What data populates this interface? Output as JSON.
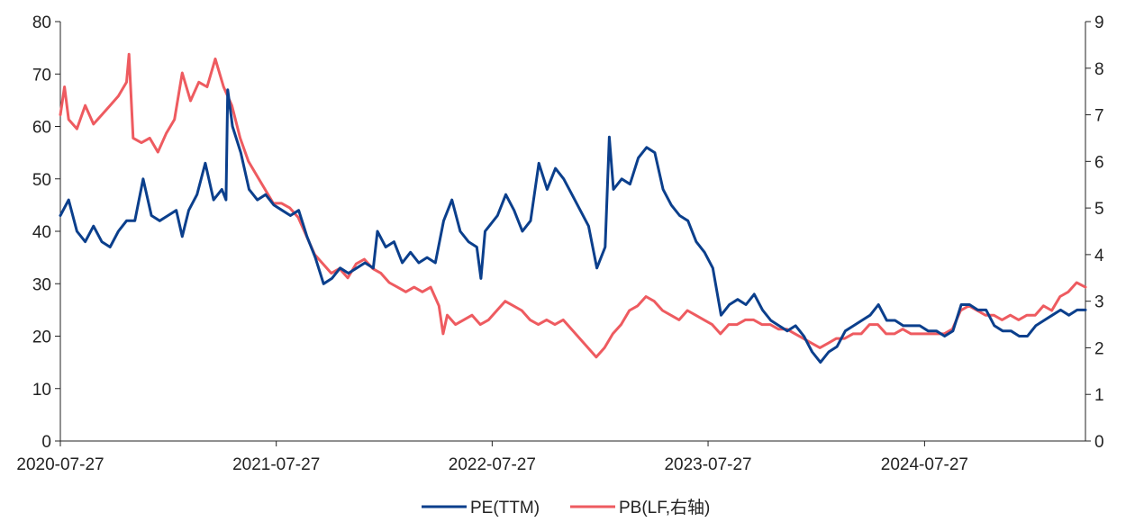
{
  "chart_data": {
    "type": "line",
    "title": "",
    "xlabel": "",
    "ylabel": "",
    "ylabel_right": "",
    "x_tick_labels": [
      "2020-07-27",
      "2021-07-27",
      "2022-07-27",
      "2023-07-27",
      "2024-07-27"
    ],
    "xlim": [
      "2020-07-27",
      "2025-04-25"
    ],
    "ylim_left": [
      0,
      80
    ],
    "ylim_right": [
      0,
      9
    ],
    "y_ticks_left": [
      0,
      10,
      20,
      30,
      40,
      50,
      60,
      70,
      80
    ],
    "y_ticks_right": [
      0,
      1,
      2,
      3,
      4,
      5,
      6,
      7,
      8,
      9
    ],
    "grid": false,
    "legend_position": "bottom",
    "colors": {
      "pe": "#0b3f8c",
      "pb": "#ee5b60",
      "axis": "#222222"
    },
    "series": [
      {
        "name": "PE(TTM)",
        "axis": "left",
        "points": [
          [
            "2020-07-27",
            43
          ],
          [
            "2020-08-10",
            46
          ],
          [
            "2020-08-24",
            40
          ],
          [
            "2020-09-07",
            38
          ],
          [
            "2020-09-21",
            41
          ],
          [
            "2020-10-05",
            38
          ],
          [
            "2020-10-19",
            37
          ],
          [
            "2020-11-02",
            40
          ],
          [
            "2020-11-16",
            42
          ],
          [
            "2020-11-30",
            42
          ],
          [
            "2020-12-14",
            50
          ],
          [
            "2020-12-28",
            43
          ],
          [
            "2021-01-11",
            42
          ],
          [
            "2021-01-25",
            43
          ],
          [
            "2021-02-08",
            44
          ],
          [
            "2021-02-18",
            39
          ],
          [
            "2021-03-01",
            44
          ],
          [
            "2021-03-15",
            47
          ],
          [
            "2021-03-29",
            53
          ],
          [
            "2021-04-12",
            46
          ],
          [
            "2021-04-26",
            48
          ],
          [
            "2021-05-03",
            46
          ],
          [
            "2021-05-06",
            67
          ],
          [
            "2021-05-14",
            60
          ],
          [
            "2021-05-28",
            55
          ],
          [
            "2021-06-11",
            48
          ],
          [
            "2021-06-25",
            46
          ],
          [
            "2021-07-09",
            47
          ],
          [
            "2021-07-23",
            45
          ],
          [
            "2021-08-06",
            44
          ],
          [
            "2021-08-20",
            43
          ],
          [
            "2021-09-03",
            44
          ],
          [
            "2021-09-17",
            39
          ],
          [
            "2021-10-01",
            35
          ],
          [
            "2021-10-15",
            30
          ],
          [
            "2021-10-29",
            31
          ],
          [
            "2021-11-12",
            33
          ],
          [
            "2021-11-26",
            32
          ],
          [
            "2021-12-10",
            33
          ],
          [
            "2021-12-24",
            34
          ],
          [
            "2022-01-07",
            33
          ],
          [
            "2022-01-14",
            40
          ],
          [
            "2022-01-28",
            37
          ],
          [
            "2022-02-11",
            38
          ],
          [
            "2022-02-25",
            34
          ],
          [
            "2022-03-11",
            36
          ],
          [
            "2022-03-25",
            34
          ],
          [
            "2022-04-08",
            35
          ],
          [
            "2022-04-22",
            34
          ],
          [
            "2022-05-06",
            42
          ],
          [
            "2022-05-20",
            46
          ],
          [
            "2022-06-03",
            40
          ],
          [
            "2022-06-17",
            38
          ],
          [
            "2022-07-01",
            37
          ],
          [
            "2022-07-08",
            31
          ],
          [
            "2022-07-15",
            40
          ],
          [
            "2022-07-22",
            41
          ],
          [
            "2022-08-05",
            43
          ],
          [
            "2022-08-19",
            47
          ],
          [
            "2022-09-02",
            44
          ],
          [
            "2022-09-16",
            40
          ],
          [
            "2022-09-30",
            42
          ],
          [
            "2022-10-14",
            53
          ],
          [
            "2022-10-28",
            48
          ],
          [
            "2022-11-11",
            52
          ],
          [
            "2022-11-25",
            50
          ],
          [
            "2022-12-09",
            47
          ],
          [
            "2022-12-23",
            44
          ],
          [
            "2023-01-06",
            41
          ],
          [
            "2023-01-20",
            33
          ],
          [
            "2023-02-03",
            37
          ],
          [
            "2023-02-10",
            58
          ],
          [
            "2023-02-17",
            48
          ],
          [
            "2023-03-03",
            50
          ],
          [
            "2023-03-17",
            49
          ],
          [
            "2023-03-31",
            54
          ],
          [
            "2023-04-14",
            56
          ],
          [
            "2023-04-28",
            55
          ],
          [
            "2023-05-12",
            48
          ],
          [
            "2023-05-26",
            45
          ],
          [
            "2023-06-09",
            43
          ],
          [
            "2023-06-23",
            42
          ],
          [
            "2023-07-07",
            38
          ],
          [
            "2023-07-21",
            36
          ],
          [
            "2023-08-04",
            33
          ],
          [
            "2023-08-18",
            24
          ],
          [
            "2023-09-01",
            26
          ],
          [
            "2023-09-15",
            27
          ],
          [
            "2023-09-29",
            26
          ],
          [
            "2023-10-13",
            28
          ],
          [
            "2023-10-27",
            25
          ],
          [
            "2023-11-10",
            23
          ],
          [
            "2023-11-24",
            22
          ],
          [
            "2023-12-08",
            21
          ],
          [
            "2023-12-22",
            22
          ],
          [
            "2024-01-05",
            20
          ],
          [
            "2024-01-19",
            17
          ],
          [
            "2024-02-02",
            15
          ],
          [
            "2024-02-16",
            17
          ],
          [
            "2024-03-01",
            18
          ],
          [
            "2024-03-15",
            21
          ],
          [
            "2024-03-29",
            22
          ],
          [
            "2024-04-12",
            23
          ],
          [
            "2024-04-26",
            24
          ],
          [
            "2024-05-10",
            26
          ],
          [
            "2024-05-24",
            23
          ],
          [
            "2024-06-07",
            23
          ],
          [
            "2024-06-21",
            22
          ],
          [
            "2024-07-05",
            22
          ],
          [
            "2024-07-19",
            22
          ],
          [
            "2024-08-02",
            21
          ],
          [
            "2024-08-16",
            21
          ],
          [
            "2024-08-30",
            20
          ],
          [
            "2024-09-13",
            21
          ],
          [
            "2024-09-27",
            26
          ],
          [
            "2024-10-11",
            26
          ],
          [
            "2024-10-25",
            25
          ],
          [
            "2024-11-08",
            25
          ],
          [
            "2024-11-22",
            22
          ],
          [
            "2024-12-06",
            21
          ],
          [
            "2024-12-20",
            21
          ],
          [
            "2025-01-03",
            20
          ],
          [
            "2025-01-17",
            20
          ],
          [
            "2025-01-31",
            22
          ],
          [
            "2025-02-14",
            23
          ],
          [
            "2025-02-28",
            24
          ],
          [
            "2025-03-14",
            25
          ],
          [
            "2025-03-28",
            24
          ],
          [
            "2025-04-11",
            25
          ],
          [
            "2025-04-25",
            25
          ]
        ]
      },
      {
        "name": "PB(LF,右轴)",
        "axis": "right",
        "points": [
          [
            "2020-07-27",
            7.0
          ],
          [
            "2020-08-03",
            7.6
          ],
          [
            "2020-08-10",
            6.9
          ],
          [
            "2020-08-24",
            6.7
          ],
          [
            "2020-09-07",
            7.2
          ],
          [
            "2020-09-21",
            6.8
          ],
          [
            "2020-10-05",
            7.0
          ],
          [
            "2020-10-19",
            7.2
          ],
          [
            "2020-11-02",
            7.4
          ],
          [
            "2020-11-16",
            7.7
          ],
          [
            "2020-11-20",
            8.3
          ],
          [
            "2020-11-27",
            6.5
          ],
          [
            "2020-12-11",
            6.4
          ],
          [
            "2020-12-25",
            6.5
          ],
          [
            "2021-01-08",
            6.2
          ],
          [
            "2021-01-22",
            6.6
          ],
          [
            "2021-02-05",
            6.9
          ],
          [
            "2021-02-18",
            7.9
          ],
          [
            "2021-03-04",
            7.3
          ],
          [
            "2021-03-18",
            7.7
          ],
          [
            "2021-04-01",
            7.6
          ],
          [
            "2021-04-15",
            8.2
          ],
          [
            "2021-04-29",
            7.6
          ],
          [
            "2021-05-13",
            7.2
          ],
          [
            "2021-05-27",
            6.5
          ],
          [
            "2021-06-10",
            6.0
          ],
          [
            "2021-06-24",
            5.7
          ],
          [
            "2021-07-08",
            5.4
          ],
          [
            "2021-07-22",
            5.1
          ],
          [
            "2021-08-05",
            5.1
          ],
          [
            "2021-08-19",
            5.0
          ],
          [
            "2021-09-02",
            4.8
          ],
          [
            "2021-09-16",
            4.4
          ],
          [
            "2021-09-30",
            4.0
          ],
          [
            "2021-10-14",
            3.8
          ],
          [
            "2021-10-28",
            3.6
          ],
          [
            "2021-11-11",
            3.7
          ],
          [
            "2021-11-25",
            3.5
          ],
          [
            "2021-12-09",
            3.8
          ],
          [
            "2021-12-23",
            3.9
          ],
          [
            "2022-01-06",
            3.7
          ],
          [
            "2022-01-20",
            3.6
          ],
          [
            "2022-02-03",
            3.4
          ],
          [
            "2022-02-17",
            3.3
          ],
          [
            "2022-03-03",
            3.2
          ],
          [
            "2022-03-17",
            3.3
          ],
          [
            "2022-03-31",
            3.2
          ],
          [
            "2022-04-14",
            3.3
          ],
          [
            "2022-04-28",
            2.9
          ],
          [
            "2022-05-05",
            2.3
          ],
          [
            "2022-05-12",
            2.7
          ],
          [
            "2022-05-26",
            2.5
          ],
          [
            "2022-06-09",
            2.6
          ],
          [
            "2022-06-23",
            2.7
          ],
          [
            "2022-07-07",
            2.5
          ],
          [
            "2022-07-21",
            2.6
          ],
          [
            "2022-08-04",
            2.8
          ],
          [
            "2022-08-18",
            3.0
          ],
          [
            "2022-09-01",
            2.9
          ],
          [
            "2022-09-15",
            2.8
          ],
          [
            "2022-09-29",
            2.6
          ],
          [
            "2022-10-13",
            2.5
          ],
          [
            "2022-10-27",
            2.6
          ],
          [
            "2022-11-10",
            2.5
          ],
          [
            "2022-11-24",
            2.6
          ],
          [
            "2022-12-08",
            2.4
          ],
          [
            "2022-12-22",
            2.2
          ],
          [
            "2023-01-05",
            2.0
          ],
          [
            "2023-01-19",
            1.8
          ],
          [
            "2023-02-02",
            2.0
          ],
          [
            "2023-02-16",
            2.3
          ],
          [
            "2023-03-02",
            2.5
          ],
          [
            "2023-03-16",
            2.8
          ],
          [
            "2023-03-30",
            2.9
          ],
          [
            "2023-04-13",
            3.1
          ],
          [
            "2023-04-27",
            3.0
          ],
          [
            "2023-05-11",
            2.8
          ],
          [
            "2023-05-25",
            2.7
          ],
          [
            "2023-06-08",
            2.6
          ],
          [
            "2023-06-22",
            2.8
          ],
          [
            "2023-07-06",
            2.7
          ],
          [
            "2023-07-20",
            2.6
          ],
          [
            "2023-08-03",
            2.5
          ],
          [
            "2023-08-17",
            2.3
          ],
          [
            "2023-08-31",
            2.5
          ],
          [
            "2023-09-14",
            2.5
          ],
          [
            "2023-09-28",
            2.6
          ],
          [
            "2023-10-12",
            2.6
          ],
          [
            "2023-10-26",
            2.5
          ],
          [
            "2023-11-09",
            2.5
          ],
          [
            "2023-11-23",
            2.4
          ],
          [
            "2023-12-07",
            2.4
          ],
          [
            "2023-12-21",
            2.3
          ],
          [
            "2024-01-04",
            2.2
          ],
          [
            "2024-01-18",
            2.1
          ],
          [
            "2024-02-01",
            2.0
          ],
          [
            "2024-02-15",
            2.1
          ],
          [
            "2024-02-29",
            2.2
          ],
          [
            "2024-03-14",
            2.2
          ],
          [
            "2024-03-28",
            2.3
          ],
          [
            "2024-04-11",
            2.3
          ],
          [
            "2024-04-25",
            2.5
          ],
          [
            "2024-05-09",
            2.5
          ],
          [
            "2024-05-23",
            2.3
          ],
          [
            "2024-06-06",
            2.3
          ],
          [
            "2024-06-20",
            2.4
          ],
          [
            "2024-07-04",
            2.3
          ],
          [
            "2024-07-18",
            2.3
          ],
          [
            "2024-08-01",
            2.3
          ],
          [
            "2024-08-15",
            2.3
          ],
          [
            "2024-08-29",
            2.3
          ],
          [
            "2024-09-12",
            2.4
          ],
          [
            "2024-09-26",
            2.8
          ],
          [
            "2024-10-10",
            2.9
          ],
          [
            "2024-10-24",
            2.8
          ],
          [
            "2024-11-07",
            2.7
          ],
          [
            "2024-11-21",
            2.7
          ],
          [
            "2024-12-05",
            2.6
          ],
          [
            "2024-12-19",
            2.7
          ],
          [
            "2025-01-02",
            2.6
          ],
          [
            "2025-01-16",
            2.7
          ],
          [
            "2025-01-30",
            2.7
          ],
          [
            "2025-02-13",
            2.9
          ],
          [
            "2025-02-27",
            2.8
          ],
          [
            "2025-03-13",
            3.1
          ],
          [
            "2025-03-27",
            3.2
          ],
          [
            "2025-04-10",
            3.4
          ],
          [
            "2025-04-25",
            3.3
          ]
        ]
      }
    ]
  }
}
